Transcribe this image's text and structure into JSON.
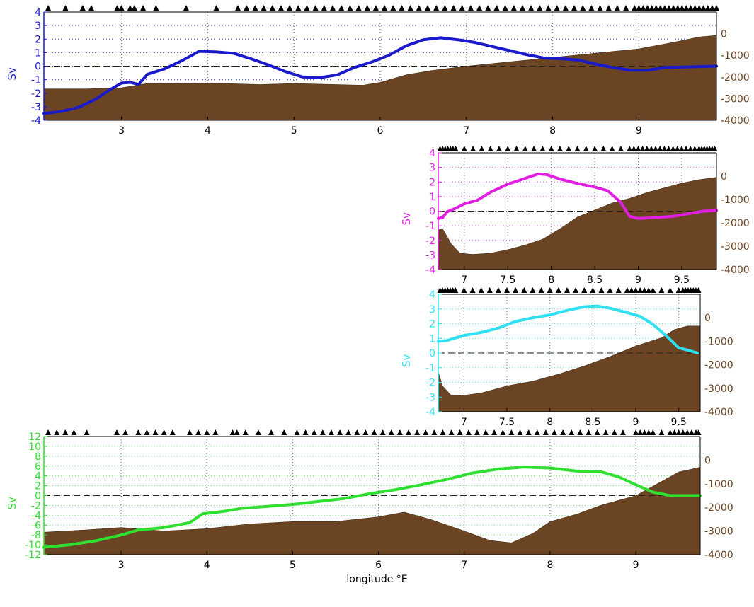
{
  "xlabel": "longitude °E",
  "colors": {
    "bathymetry": "#6b4423",
    "station": "#000000"
  },
  "chart_data": [
    {
      "type": "line",
      "id": "panel-1",
      "color": "#1a1acc",
      "ylabel": "Sv",
      "xlim": [
        2.1,
        9.9
      ],
      "ylim": [
        -4,
        4
      ],
      "yticks": [
        -4,
        -3,
        -2,
        -1,
        0,
        1,
        2,
        3,
        4
      ],
      "xticks": [
        3,
        4,
        5,
        6,
        7,
        8,
        9
      ],
      "depth_lim": [
        -4000,
        1000
      ],
      "depth_ticks": [
        0,
        -1000,
        -2000,
        -3000,
        -4000
      ],
      "transport": [
        [
          2.1,
          -3.5
        ],
        [
          2.3,
          -3.35
        ],
        [
          2.5,
          -3.05
        ],
        [
          2.7,
          -2.45
        ],
        [
          2.85,
          -1.8
        ],
        [
          3.0,
          -1.25
        ],
        [
          3.1,
          -1.2
        ],
        [
          3.2,
          -1.35
        ],
        [
          3.3,
          -0.6
        ],
        [
          3.5,
          -0.2
        ],
        [
          3.7,
          0.4
        ],
        [
          3.9,
          1.1
        ],
        [
          4.1,
          1.05
        ],
        [
          4.3,
          0.95
        ],
        [
          4.5,
          0.55
        ],
        [
          4.7,
          0.1
        ],
        [
          4.9,
          -0.4
        ],
        [
          5.1,
          -0.8
        ],
        [
          5.3,
          -0.85
        ],
        [
          5.5,
          -0.65
        ],
        [
          5.7,
          -0.1
        ],
        [
          5.9,
          0.3
        ],
        [
          6.1,
          0.8
        ],
        [
          6.3,
          1.5
        ],
        [
          6.5,
          1.95
        ],
        [
          6.7,
          2.1
        ],
        [
          6.9,
          1.95
        ],
        [
          7.1,
          1.75
        ],
        [
          7.3,
          1.45
        ],
        [
          7.5,
          1.15
        ],
        [
          7.7,
          0.85
        ],
        [
          7.9,
          0.6
        ],
        [
          8.1,
          0.55
        ],
        [
          8.3,
          0.45
        ],
        [
          8.5,
          0.15
        ],
        [
          8.7,
          -0.1
        ],
        [
          8.9,
          -0.3
        ],
        [
          9.1,
          -0.3
        ],
        [
          9.3,
          -0.1
        ],
        [
          9.6,
          -0.05
        ],
        [
          9.9,
          0.0
        ]
      ],
      "bathymetry": [
        [
          2.1,
          -2550
        ],
        [
          2.6,
          -2550
        ],
        [
          3.0,
          -2500
        ],
        [
          3.3,
          -2300
        ],
        [
          3.6,
          -2300
        ],
        [
          4.2,
          -2300
        ],
        [
          4.6,
          -2350
        ],
        [
          5.0,
          -2300
        ],
        [
          5.5,
          -2350
        ],
        [
          5.8,
          -2380
        ],
        [
          6.0,
          -2250
        ],
        [
          6.3,
          -1900
        ],
        [
          6.6,
          -1700
        ],
        [
          7.0,
          -1500
        ],
        [
          7.5,
          -1300
        ],
        [
          8.0,
          -1100
        ],
        [
          8.5,
          -900
        ],
        [
          9.0,
          -700
        ],
        [
          9.4,
          -400
        ],
        [
          9.7,
          -150
        ],
        [
          9.9,
          -80
        ]
      ],
      "stations": [
        2.15,
        2.35,
        2.55,
        2.65,
        2.95,
        3.0,
        3.1,
        3.15,
        3.25,
        3.4,
        3.75,
        4.1,
        4.35,
        4.45,
        4.55,
        4.65,
        4.75,
        4.85,
        4.95,
        5.05,
        5.15,
        5.25,
        5.35,
        5.45,
        5.55,
        5.65,
        5.75,
        5.85,
        5.95,
        6.05,
        6.15,
        6.25,
        6.35,
        6.45,
        6.55,
        6.65,
        6.75,
        6.85,
        6.95,
        7.05,
        7.15,
        7.25,
        7.35,
        7.45,
        7.55,
        7.65,
        7.75,
        7.85,
        7.95,
        8.05,
        8.15,
        8.25,
        8.35,
        8.45,
        8.55,
        8.65,
        8.75,
        8.85,
        8.95,
        9.0,
        9.05,
        9.1,
        9.15,
        9.2,
        9.25,
        9.3,
        9.35,
        9.4,
        9.45,
        9.5,
        9.55,
        9.6,
        9.65,
        9.7,
        9.75,
        9.8,
        9.85,
        9.9
      ]
    },
    {
      "type": "line",
      "id": "panel-2",
      "color": "#e020e0",
      "ylabel": "Sv",
      "xlim": [
        6.7,
        9.9
      ],
      "ylim": [
        -4,
        4
      ],
      "yticks": [
        -4,
        -3,
        -2,
        -1,
        0,
        1,
        2,
        3,
        4
      ],
      "xticks": [
        7,
        7.5,
        8,
        8.5,
        9,
        9.5
      ],
      "depth_lim": [
        -4000,
        1000
      ],
      "depth_ticks": [
        0,
        -1000,
        -2000,
        -3000,
        -4000
      ],
      "transport": [
        [
          6.7,
          -0.5
        ],
        [
          6.75,
          -0.45
        ],
        [
          6.8,
          -0.05
        ],
        [
          6.9,
          0.2
        ],
        [
          7.0,
          0.5
        ],
        [
          7.15,
          0.75
        ],
        [
          7.3,
          1.3
        ],
        [
          7.5,
          1.85
        ],
        [
          7.7,
          2.25
        ],
        [
          7.85,
          2.55
        ],
        [
          7.95,
          2.5
        ],
        [
          8.1,
          2.2
        ],
        [
          8.3,
          1.9
        ],
        [
          8.5,
          1.65
        ],
        [
          8.65,
          1.4
        ],
        [
          8.8,
          0.6
        ],
        [
          8.9,
          -0.35
        ],
        [
          9.0,
          -0.5
        ],
        [
          9.2,
          -0.45
        ],
        [
          9.4,
          -0.35
        ],
        [
          9.6,
          -0.15
        ],
        [
          9.75,
          0.0
        ],
        [
          9.9,
          0.05
        ]
      ],
      "bathymetry": [
        [
          6.7,
          -2300
        ],
        [
          6.75,
          -2250
        ],
        [
          6.85,
          -2900
        ],
        [
          6.95,
          -3300
        ],
        [
          7.1,
          -3350
        ],
        [
          7.3,
          -3300
        ],
        [
          7.5,
          -3150
        ],
        [
          7.7,
          -2950
        ],
        [
          7.9,
          -2700
        ],
        [
          8.1,
          -2250
        ],
        [
          8.3,
          -1750
        ],
        [
          8.5,
          -1450
        ],
        [
          8.7,
          -1150
        ],
        [
          8.9,
          -950
        ],
        [
          9.1,
          -700
        ],
        [
          9.3,
          -500
        ],
        [
          9.5,
          -300
        ],
        [
          9.7,
          -150
        ],
        [
          9.9,
          -50
        ]
      ],
      "stations": [
        6.72,
        6.75,
        6.78,
        6.81,
        6.84,
        6.87,
        6.9,
        7.0,
        7.1,
        7.2,
        7.3,
        7.4,
        7.5,
        7.6,
        7.7,
        7.8,
        7.9,
        8.0,
        8.1,
        8.2,
        8.3,
        8.4,
        8.5,
        8.6,
        8.7,
        8.8,
        8.9,
        8.95,
        9.0,
        9.05,
        9.1,
        9.15,
        9.2,
        9.25,
        9.3,
        9.35,
        9.4,
        9.45,
        9.5,
        9.55,
        9.6,
        9.65,
        9.7,
        9.73,
        9.76,
        9.79,
        9.82,
        9.85,
        9.88
      ]
    },
    {
      "type": "line",
      "id": "panel-3",
      "color": "#30e0f0",
      "ylabel": "Sv",
      "xlim": [
        6.7,
        9.75
      ],
      "ylim": [
        -4,
        4
      ],
      "yticks": [
        -4,
        -3,
        -2,
        -1,
        0,
        1,
        2,
        3,
        4
      ],
      "xticks": [
        7,
        7.5,
        8,
        8.5,
        9,
        9.5
      ],
      "depth_lim": [
        -4000,
        1000
      ],
      "depth_ticks": [
        0,
        -1000,
        -2000,
        -3000,
        -4000
      ],
      "transport": [
        [
          6.7,
          0.8
        ],
        [
          6.8,
          0.85
        ],
        [
          7.0,
          1.2
        ],
        [
          7.2,
          1.4
        ],
        [
          7.4,
          1.7
        ],
        [
          7.6,
          2.15
        ],
        [
          7.8,
          2.4
        ],
        [
          8.0,
          2.6
        ],
        [
          8.2,
          2.9
        ],
        [
          8.4,
          3.15
        ],
        [
          8.55,
          3.2
        ],
        [
          8.7,
          3.05
        ],
        [
          8.9,
          2.75
        ],
        [
          9.05,
          2.5
        ],
        [
          9.2,
          1.95
        ],
        [
          9.35,
          1.2
        ],
        [
          9.5,
          0.35
        ],
        [
          9.6,
          0.2
        ],
        [
          9.72,
          0.0
        ]
      ],
      "bathymetry": [
        [
          6.7,
          -2300
        ],
        [
          6.75,
          -2900
        ],
        [
          6.85,
          -3300
        ],
        [
          7.0,
          -3300
        ],
        [
          7.2,
          -3200
        ],
        [
          7.5,
          -2900
        ],
        [
          7.8,
          -2700
        ],
        [
          8.1,
          -2400
        ],
        [
          8.4,
          -2050
        ],
        [
          8.7,
          -1650
        ],
        [
          9.0,
          -1200
        ],
        [
          9.3,
          -850
        ],
        [
          9.45,
          -500
        ],
        [
          9.6,
          -350
        ],
        [
          9.75,
          -350
        ]
      ],
      "stations": [
        6.72,
        6.75,
        6.78,
        6.81,
        6.84,
        6.87,
        6.9,
        7.0,
        7.1,
        7.2,
        7.3,
        7.4,
        7.5,
        7.6,
        7.7,
        7.8,
        7.9,
        8.0,
        8.1,
        8.2,
        8.3,
        8.4,
        8.5,
        8.6,
        8.7,
        8.8,
        8.9,
        8.95,
        9.0,
        9.05,
        9.1,
        9.15,
        9.2,
        9.3,
        9.4,
        9.5,
        9.55,
        9.58,
        9.61,
        9.64,
        9.67,
        9.7,
        9.73
      ]
    },
    {
      "type": "line",
      "id": "panel-4",
      "color": "#30e030",
      "ylabel": "Sv",
      "xlim": [
        2.1,
        9.75
      ],
      "ylim": [
        -12,
        12
      ],
      "yticks": [
        -12,
        -10,
        -8,
        -6,
        -4,
        -2,
        0,
        2,
        4,
        6,
        8,
        10,
        12
      ],
      "xticks": [
        3,
        4,
        5,
        6,
        7,
        8,
        9
      ],
      "depth_lim": [
        -4000,
        1000
      ],
      "depth_ticks": [
        0,
        -1000,
        -2000,
        -3000,
        -4000
      ],
      "transport": [
        [
          2.1,
          -10.5
        ],
        [
          2.4,
          -10.0
        ],
        [
          2.7,
          -9.2
        ],
        [
          3.0,
          -8.0
        ],
        [
          3.2,
          -7.0
        ],
        [
          3.5,
          -6.5
        ],
        [
          3.8,
          -5.5
        ],
        [
          3.95,
          -3.7
        ],
        [
          4.2,
          -3.2
        ],
        [
          4.4,
          -2.6
        ],
        [
          4.7,
          -2.2
        ],
        [
          5.0,
          -1.8
        ],
        [
          5.3,
          -1.2
        ],
        [
          5.6,
          -0.6
        ],
        [
          5.9,
          0.4
        ],
        [
          6.2,
          1.2
        ],
        [
          6.5,
          2.2
        ],
        [
          6.8,
          3.3
        ],
        [
          7.1,
          4.6
        ],
        [
          7.4,
          5.4
        ],
        [
          7.7,
          5.8
        ],
        [
          8.0,
          5.6
        ],
        [
          8.3,
          5.0
        ],
        [
          8.6,
          4.8
        ],
        [
          8.8,
          3.8
        ],
        [
          9.0,
          2.2
        ],
        [
          9.2,
          0.7
        ],
        [
          9.4,
          0.0
        ],
        [
          9.75,
          0.0
        ]
      ],
      "bathymetry": [
        [
          2.1,
          -3050
        ],
        [
          2.6,
          -2950
        ],
        [
          3.0,
          -2850
        ],
        [
          3.5,
          -3000
        ],
        [
          4.0,
          -2900
        ],
        [
          4.5,
          -2700
        ],
        [
          5.0,
          -2600
        ],
        [
          5.5,
          -2600
        ],
        [
          6.0,
          -2400
        ],
        [
          6.3,
          -2200
        ],
        [
          6.6,
          -2500
        ],
        [
          7.0,
          -3000
        ],
        [
          7.3,
          -3400
        ],
        [
          7.55,
          -3500
        ],
        [
          7.8,
          -3100
        ],
        [
          8.0,
          -2600
        ],
        [
          8.3,
          -2300
        ],
        [
          8.6,
          -1900
        ],
        [
          9.0,
          -1500
        ],
        [
          9.3,
          -900
        ],
        [
          9.5,
          -500
        ],
        [
          9.75,
          -300
        ]
      ],
      "stations": [
        2.15,
        2.25,
        2.35,
        2.45,
        2.6,
        2.95,
        3.05,
        3.2,
        3.3,
        3.4,
        3.5,
        3.6,
        3.8,
        3.9,
        4.0,
        4.1,
        4.3,
        4.35,
        4.45,
        4.6,
        4.75,
        4.9,
        5.05,
        5.15,
        5.25,
        5.35,
        5.45,
        5.55,
        5.65,
        5.75,
        5.85,
        5.95,
        6.05,
        6.15,
        6.25,
        6.35,
        6.45,
        6.55,
        6.65,
        6.75,
        6.85,
        6.95,
        7.05,
        7.15,
        7.25,
        7.35,
        7.45,
        7.55,
        7.65,
        7.75,
        7.85,
        7.95,
        8.05,
        8.15,
        8.25,
        8.35,
        8.45,
        8.55,
        8.65,
        8.75,
        8.85,
        9.0,
        9.05,
        9.1,
        9.15,
        9.2,
        9.3,
        9.4,
        9.45,
        9.5,
        9.55,
        9.6,
        9.65,
        9.7,
        9.73
      ]
    }
  ]
}
